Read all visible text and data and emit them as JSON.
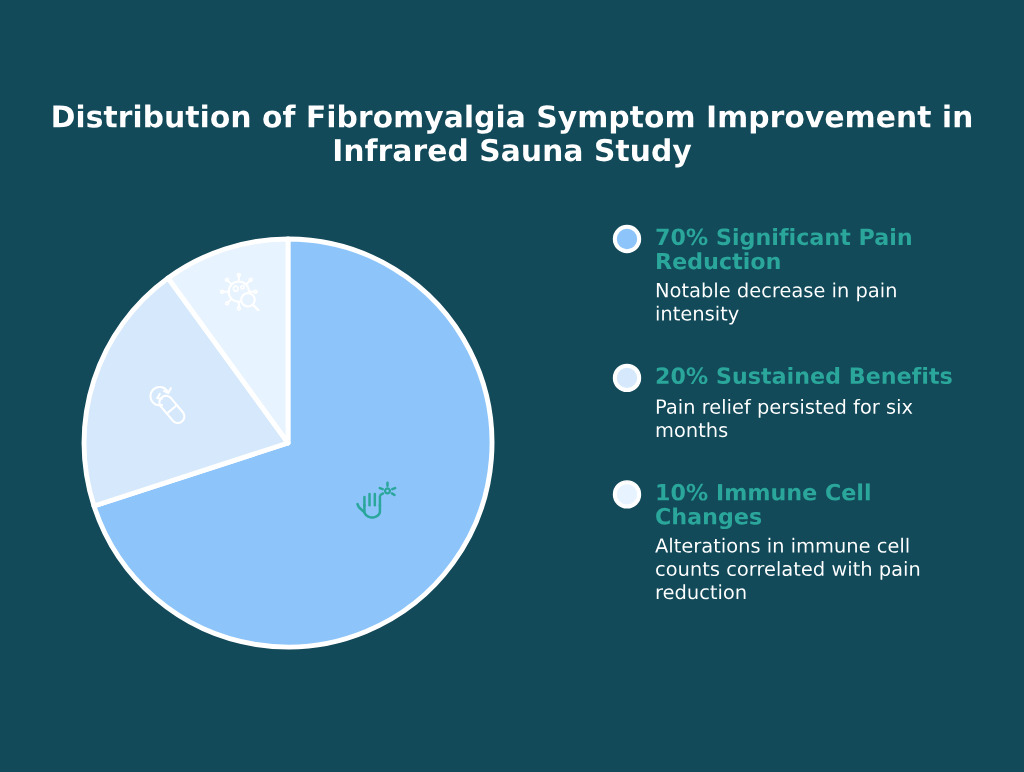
{
  "chart_data": {
    "type": "pie",
    "title": "Distribution of Fibromyalgia Symptom Improvement in Infrared Sauna Study",
    "categories": [
      "Significant Pain Reduction",
      "Sustained Benefits",
      "Immune Cell Changes"
    ],
    "values": [
      70,
      20,
      10
    ],
    "value_labels": [
      "70%",
      "20%",
      "10%"
    ],
    "colors": [
      "#8dc5fa",
      "#d6e9fc",
      "#e7f3fe"
    ],
    "legend": "right",
    "annotations": [
      "Notable decrease in pain intensity",
      "Pain relief persisted for six months",
      "Alterations in immune cell counts correlated with pain reduction"
    ]
  }
}
